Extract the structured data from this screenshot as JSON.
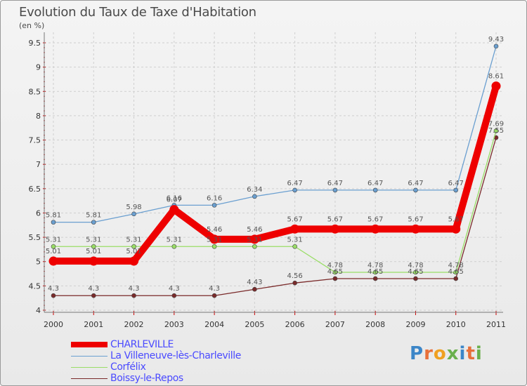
{
  "chart_data": {
    "type": "line",
    "title": "Evolution du Taux de Taxe d'Habitation",
    "subtitle": "(en %)",
    "x": [
      "2000",
      "2001",
      "2002",
      "2003",
      "2004",
      "2005",
      "2006",
      "2007",
      "2008",
      "2009",
      "2010",
      "2011"
    ],
    "ylim": [
      4,
      9.5
    ],
    "yticks": [
      "4",
      "4.5",
      "5",
      "5.5",
      "6",
      "6.5",
      "7",
      "7.5",
      "8",
      "8.5",
      "9",
      "9.5"
    ],
    "legend_position": "bottom-left",
    "series": [
      {
        "name": "CHARLEVILLE",
        "color": "#ee0000",
        "values": [
          5.01,
          5.01,
          5.01,
          6.07,
          5.46,
          5.46,
          5.67,
          5.67,
          5.67,
          5.67,
          5.67,
          8.61
        ],
        "labels": [
          "5.01",
          "5.01",
          "5.01",
          "6.07",
          "5.46",
          "5.46",
          "5.67",
          "5.67",
          "5.67",
          "5.67",
          "5.67",
          "8.61"
        ]
      },
      {
        "name": "La Villeneuve-lès-Charleville",
        "color": "#6a9fd0",
        "values": [
          5.81,
          5.81,
          5.98,
          6.16,
          6.16,
          6.34,
          6.47,
          6.47,
          6.47,
          6.47,
          6.47,
          9.43
        ],
        "labels": [
          "5.81",
          "5.81",
          "5.98",
          "6.16",
          "6.16",
          "6.34",
          "6.47",
          "6.47",
          "6.47",
          "6.47",
          "6.47",
          "9.43"
        ]
      },
      {
        "name": "Corfélix",
        "color": "#99dd66",
        "values": [
          5.31,
          5.31,
          5.31,
          5.31,
          5.31,
          5.31,
          5.31,
          4.78,
          4.78,
          4.78,
          4.78,
          7.69
        ],
        "labels": [
          "5.31",
          "5.31",
          "5.31",
          "5.31",
          "5.31",
          "5.31",
          "5.31",
          "4.78",
          "4.78",
          "4.78",
          "4.78",
          "7.69"
        ]
      },
      {
        "name": "Boissy-le-Repos",
        "color": "#7a2a2a",
        "values": [
          4.3,
          4.3,
          4.3,
          4.3,
          4.3,
          4.43,
          4.56,
          4.65,
          4.65,
          4.65,
          4.65,
          7.55
        ],
        "labels": [
          "4.3",
          "4.3",
          "4.3",
          "4.3",
          "4.3",
          "4.43",
          "4.56",
          "4.65",
          "4.65",
          "4.65",
          "4.65",
          "7.55"
        ]
      }
    ]
  },
  "logo": {
    "text": "Proxiti"
  }
}
